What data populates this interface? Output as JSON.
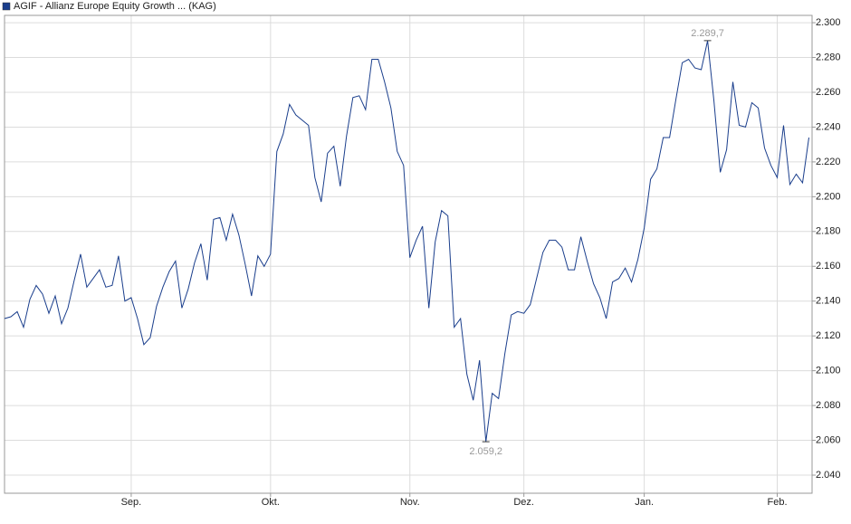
{
  "chart_data": {
    "type": "line",
    "x": [
      0,
      1,
      2,
      3,
      4,
      5,
      6,
      7,
      8,
      9,
      10,
      11,
      12,
      13,
      14,
      15,
      16,
      17,
      18,
      19,
      20,
      21,
      22,
      23,
      24,
      25,
      26,
      27,
      28,
      29,
      30,
      31,
      32,
      33,
      34,
      35,
      36,
      37,
      38,
      39,
      40,
      41,
      42,
      43,
      44,
      45,
      46,
      47,
      48,
      49,
      50,
      51,
      52,
      53,
      54,
      55,
      56,
      57,
      58,
      59,
      60,
      61,
      62,
      63,
      64,
      65,
      66,
      67,
      68,
      69,
      70,
      71,
      72,
      73,
      74,
      75,
      76,
      77,
      78,
      79,
      80,
      81,
      82,
      83,
      84,
      85,
      86,
      87,
      88,
      89,
      90,
      91,
      92,
      93,
      94,
      95,
      96,
      97,
      98,
      99,
      100,
      101,
      102,
      103,
      104,
      105,
      106,
      107,
      108,
      109,
      110,
      111,
      112,
      113,
      114,
      115,
      116,
      117,
      118,
      119,
      120,
      121,
      122,
      123,
      124,
      125,
      126,
      127
    ],
    "series": [
      {
        "name": "AGIF - Allianz Europe Equity Growth ... (KAG)",
        "color": "#1a3e8c",
        "values": [
          2.13,
          2.131,
          2.134,
          2.125,
          2.141,
          2.149,
          2.144,
          2.133,
          2.143,
          2.127,
          2.136,
          2.152,
          2.167,
          2.148,
          2.153,
          2.158,
          2.148,
          2.149,
          2.166,
          2.14,
          2.142,
          2.13,
          2.115,
          2.119,
          2.137,
          2.148,
          2.157,
          2.163,
          2.136,
          2.147,
          2.162,
          2.173,
          2.152,
          2.187,
          2.188,
          2.175,
          2.19,
          2.178,
          2.161,
          2.143,
          2.166,
          2.16,
          2.167,
          2.226,
          2.236,
          2.253,
          2.247,
          2.244,
          2.241,
          2.211,
          2.197,
          2.225,
          2.229,
          2.206,
          2.235,
          2.257,
          2.258,
          2.25,
          2.279,
          2.279,
          2.266,
          2.251,
          2.226,
          2.218,
          2.165,
          2.175,
          2.183,
          2.136,
          2.174,
          2.192,
          2.189,
          2.125,
          2.13,
          2.098,
          2.083,
          2.106,
          2.0592,
          2.087,
          2.084,
          2.11,
          2.132,
          2.134,
          2.133,
          2.138,
          2.153,
          2.168,
          2.175,
          2.175,
          2.171,
          2.158,
          2.158,
          2.177,
          2.163,
          2.15,
          2.142,
          2.13,
          2.151,
          2.153,
          2.159,
          2.151,
          2.164,
          2.182,
          2.21,
          2.216,
          2.234,
          2.234,
          2.256,
          2.277,
          2.279,
          2.274,
          2.273,
          2.2897,
          2.255,
          2.214,
          2.227,
          2.266,
          2.241,
          2.24,
          2.254,
          2.251,
          2.228,
          2.218,
          2.211,
          2.241,
          2.207,
          2.213,
          2.208,
          2.234
        ],
        "value_labels": [
          null,
          null,
          null,
          null,
          null,
          null,
          null,
          null,
          null,
          null,
          null,
          null,
          null,
          null,
          null,
          null,
          null,
          null,
          null,
          null,
          null,
          null,
          null,
          null,
          null,
          null,
          null,
          null,
          null,
          null,
          null,
          null,
          null,
          null,
          null,
          null,
          null,
          null,
          null,
          null,
          null,
          null,
          null,
          null,
          null,
          null,
          null,
          null,
          null,
          null,
          null,
          null,
          null,
          null,
          null,
          null,
          null,
          null,
          null,
          null,
          null,
          null,
          null,
          null,
          null,
          null,
          null,
          null,
          null,
          null,
          null,
          null,
          null,
          null,
          null,
          null,
          "2.059,2",
          null,
          null,
          null,
          null,
          null,
          null,
          null,
          null,
          null,
          null,
          null,
          null,
          null,
          null,
          null,
          null,
          null,
          null,
          null,
          null,
          null,
          null,
          null,
          null,
          null,
          null,
          null,
          null,
          null,
          null,
          null,
          null,
          null,
          null,
          "2.289,7",
          null,
          null,
          null,
          null,
          null,
          null,
          null,
          null,
          null,
          null,
          null,
          null,
          null,
          null,
          null,
          null
        ]
      }
    ],
    "xlim": [
      0,
      127.5
    ],
    "xticks": [
      {
        "value": 20,
        "label": "Sep."
      },
      {
        "value": 42,
        "label": "Okt."
      },
      {
        "value": 64,
        "label": "Nov."
      },
      {
        "value": 82,
        "label": "Dez."
      },
      {
        "value": 101,
        "label": "Jan."
      },
      {
        "value": 122,
        "label": "Feb."
      }
    ],
    "ylim": [
      2.0296,
      2.3042
    ],
    "yticks": [
      {
        "value": 2.04,
        "label": "2.040"
      },
      {
        "value": 2.06,
        "label": "2.060"
      },
      {
        "value": 2.08,
        "label": "2.080"
      },
      {
        "value": 2.1,
        "label": "2.100"
      },
      {
        "value": 2.12,
        "label": "2.120"
      },
      {
        "value": 2.14,
        "label": "2.140"
      },
      {
        "value": 2.16,
        "label": "2.160"
      },
      {
        "value": 2.18,
        "label": "2.180"
      },
      {
        "value": 2.2,
        "label": "2.200"
      },
      {
        "value": 2.22,
        "label": "2.220"
      },
      {
        "value": 2.24,
        "label": "2.240"
      },
      {
        "value": 2.26,
        "label": "2.260"
      },
      {
        "value": 2.28,
        "label": "2.280"
      },
      {
        "value": 2.3,
        "label": "2.300"
      }
    ],
    "grid": true
  }
}
